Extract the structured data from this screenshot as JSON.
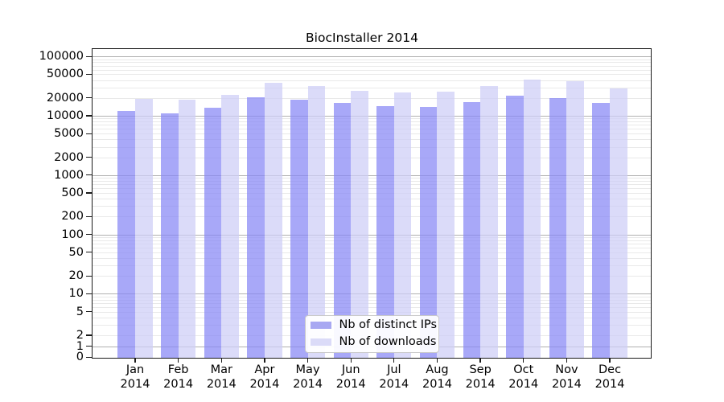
{
  "chart_data": {
    "type": "bar",
    "title": "BiocInstaller 2014",
    "categories": [
      "Jan 2014",
      "Feb 2014",
      "Mar 2014",
      "Apr 2014",
      "May 2014",
      "Jun 2014",
      "Jul 2014",
      "Aug 2014",
      "Sep 2014",
      "Oct 2014",
      "Nov 2014",
      "Dec 2014"
    ],
    "series": [
      {
        "name": "Nb of distinct IPs",
        "color": "#a8a8f2",
        "fill": "rgba(135,135,245,0.72)",
        "values": [
          12100,
          11300,
          13900,
          21100,
          18900,
          16600,
          14700,
          14200,
          17100,
          22300,
          20500,
          16800
        ]
      },
      {
        "name": "Nb of downloads",
        "color": "#dbdbf8",
        "fill": "rgba(205,205,246,0.72)",
        "values": [
          19800,
          19000,
          23100,
          37000,
          32700,
          26800,
          25200,
          26300,
          32400,
          41200,
          39000,
          29400
        ]
      }
    ],
    "y_axis": {
      "scale": "symlog",
      "linthresh": 2,
      "ticks": [
        0,
        1,
        2,
        5,
        10,
        20,
        50,
        100,
        200,
        500,
        1000,
        2000,
        5000,
        10000,
        20000,
        50000,
        100000
      ],
      "top_limit": 140000
    },
    "grid": {
      "enabled": true,
      "major_color": "#b0b0b0",
      "minor_color": "#e9e9e9"
    },
    "legend_position": "bottom-center-inside"
  }
}
